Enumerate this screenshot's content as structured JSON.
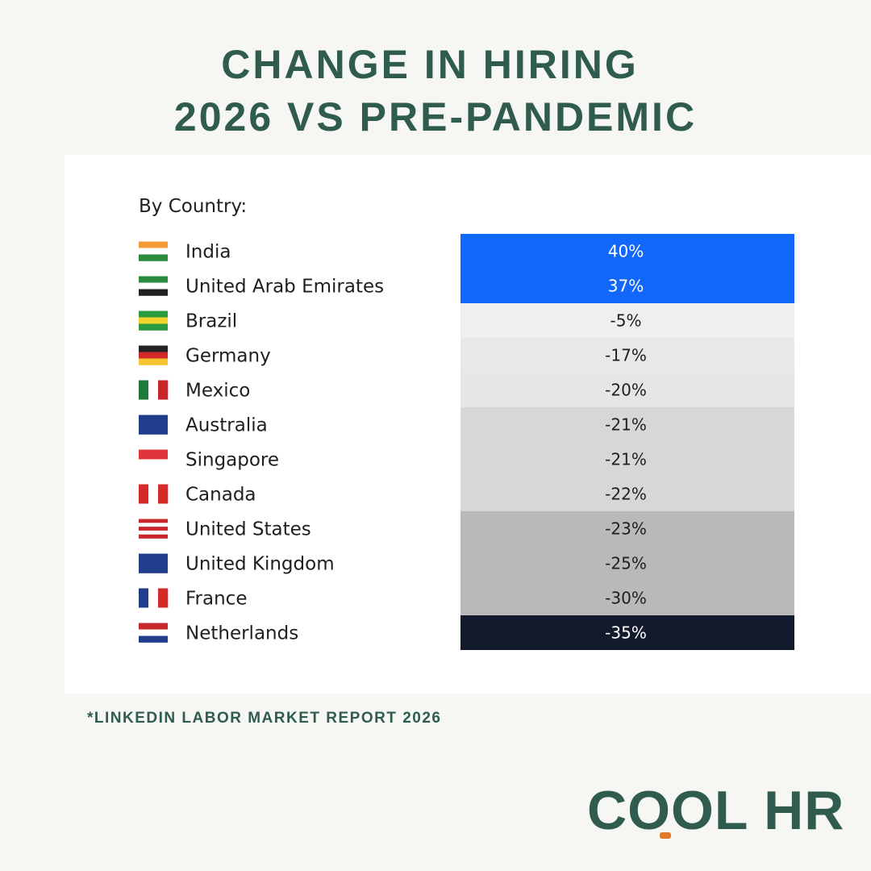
{
  "header": {
    "title_line1": "CHANGE IN HIRING",
    "title_line2": "2026 VS PRE-PANDEMIC"
  },
  "table": {
    "caption": "By Country:",
    "rows": [
      {
        "country": "India",
        "value": "40%",
        "color": "#1167fa"
      },
      {
        "country": "United Arab Emirates",
        "value": "37%",
        "color": "#1167fa"
      },
      {
        "country": "Brazil",
        "value": "-5%",
        "color": "#efefef"
      },
      {
        "country": "Germany",
        "value": "-17%",
        "color": "#e8e8e8"
      },
      {
        "country": "Mexico",
        "value": "-20%",
        "color": "#e6e6e6"
      },
      {
        "country": "Australia",
        "value": "-21%",
        "color": "#d7d7d7"
      },
      {
        "country": "Singapore",
        "value": "-21%",
        "color": "#d7d7d7"
      },
      {
        "country": "Canada",
        "value": "-22%",
        "color": "#d7d7d7"
      },
      {
        "country": "United States",
        "value": "-23%",
        "color": "#b9b9b9"
      },
      {
        "country": "United Kingdom",
        "value": "-25%",
        "color": "#b9b9b9"
      },
      {
        "country": "France",
        "value": "-30%",
        "color": "#b9b9b9"
      },
      {
        "country": "Netherlands",
        "value": "-35%",
        "color": "#121a2c"
      }
    ]
  },
  "footnote": "*LINKEDIN LABOR MARKET REPORT 2026",
  "logo": "COOL HR"
}
